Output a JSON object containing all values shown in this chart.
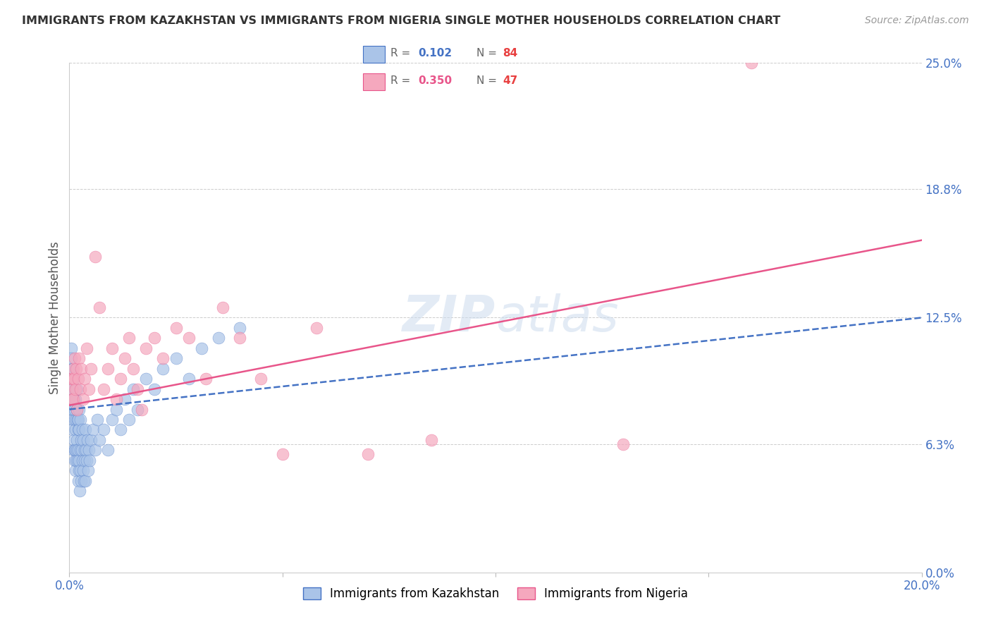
{
  "title": "IMMIGRANTS FROM KAZAKHSTAN VS IMMIGRANTS FROM NIGERIA SINGLE MOTHER HOUSEHOLDS CORRELATION CHART",
  "source": "Source: ZipAtlas.com",
  "ylabel": "Single Mother Households",
  "xlabel_ticks": [
    "0.0%",
    "",
    "",
    "",
    "20.0%"
  ],
  "xlabel_vals": [
    0.0,
    0.05,
    0.1,
    0.15,
    0.2
  ],
  "ylabel_ticks_right": [
    "25.0%",
    "18.8%",
    "12.5%",
    "6.3%",
    "0.0%"
  ],
  "ylabel_vals": [
    0.0,
    0.063,
    0.125,
    0.188,
    0.25
  ],
  "xlim": [
    0.0,
    0.2
  ],
  "ylim": [
    0.0,
    0.25
  ],
  "kazakhstan_color": "#aac4e8",
  "nigeria_color": "#f5a8be",
  "kazakhstan_R": "0.102",
  "kazakhstan_N": "84",
  "nigeria_R": "0.350",
  "nigeria_N": "47",
  "kazakhstan_trend_color": "#4472c4",
  "nigeria_trend_color": "#e8558a",
  "kaz_trend_start_y": 0.08,
  "kaz_trend_end_y": 0.125,
  "nig_trend_start_y": 0.082,
  "nig_trend_end_y": 0.163,
  "kazakhstan_x": [
    0.0005,
    0.0005,
    0.0005,
    0.0006,
    0.0006,
    0.0007,
    0.0007,
    0.0007,
    0.0008,
    0.0008,
    0.0009,
    0.001,
    0.001,
    0.001,
    0.0011,
    0.0011,
    0.0012,
    0.0012,
    0.0013,
    0.0013,
    0.0014,
    0.0014,
    0.0015,
    0.0015,
    0.0016,
    0.0016,
    0.0017,
    0.0017,
    0.0018,
    0.0018,
    0.0019,
    0.0019,
    0.002,
    0.002,
    0.0021,
    0.0021,
    0.0022,
    0.0022,
    0.0023,
    0.0023,
    0.0024,
    0.0025,
    0.0025,
    0.0026,
    0.0027,
    0.0028,
    0.0029,
    0.003,
    0.0031,
    0.0032,
    0.0033,
    0.0034,
    0.0035,
    0.0036,
    0.0037,
    0.0038,
    0.0039,
    0.004,
    0.0042,
    0.0044,
    0.0046,
    0.0048,
    0.005,
    0.0055,
    0.006,
    0.0065,
    0.007,
    0.008,
    0.009,
    0.01,
    0.011,
    0.012,
    0.013,
    0.014,
    0.015,
    0.016,
    0.018,
    0.02,
    0.022,
    0.025,
    0.028,
    0.031,
    0.035,
    0.04
  ],
  "kazakhstan_y": [
    0.1,
    0.11,
    0.105,
    0.09,
    0.095,
    0.08,
    0.085,
    0.1,
    0.07,
    0.09,
    0.075,
    0.06,
    0.08,
    0.095,
    0.065,
    0.085,
    0.055,
    0.075,
    0.06,
    0.08,
    0.05,
    0.07,
    0.06,
    0.085,
    0.055,
    0.075,
    0.065,
    0.09,
    0.06,
    0.08,
    0.055,
    0.075,
    0.045,
    0.07,
    0.06,
    0.075,
    0.05,
    0.08,
    0.055,
    0.07,
    0.04,
    0.06,
    0.075,
    0.05,
    0.065,
    0.045,
    0.06,
    0.055,
    0.07,
    0.05,
    0.065,
    0.045,
    0.06,
    0.055,
    0.07,
    0.045,
    0.06,
    0.055,
    0.065,
    0.05,
    0.06,
    0.055,
    0.065,
    0.07,
    0.06,
    0.075,
    0.065,
    0.07,
    0.06,
    0.075,
    0.08,
    0.07,
    0.085,
    0.075,
    0.09,
    0.08,
    0.095,
    0.09,
    0.1,
    0.105,
    0.095,
    0.11,
    0.115,
    0.12
  ],
  "nigeria_x": [
    0.0005,
    0.0006,
    0.0007,
    0.0008,
    0.0009,
    0.001,
    0.0011,
    0.0012,
    0.0014,
    0.0016,
    0.0018,
    0.002,
    0.0022,
    0.0025,
    0.0028,
    0.0032,
    0.0036,
    0.004,
    0.0045,
    0.005,
    0.006,
    0.007,
    0.008,
    0.009,
    0.01,
    0.011,
    0.012,
    0.013,
    0.014,
    0.015,
    0.016,
    0.017,
    0.018,
    0.02,
    0.022,
    0.025,
    0.028,
    0.032,
    0.036,
    0.04,
    0.045,
    0.05,
    0.058,
    0.07,
    0.085,
    0.13,
    0.16
  ],
  "nigeria_y": [
    0.095,
    0.09,
    0.085,
    0.095,
    0.1,
    0.085,
    0.095,
    0.105,
    0.09,
    0.1,
    0.08,
    0.095,
    0.105,
    0.09,
    0.1,
    0.085,
    0.095,
    0.11,
    0.09,
    0.1,
    0.155,
    0.13,
    0.09,
    0.1,
    0.11,
    0.085,
    0.095,
    0.105,
    0.115,
    0.1,
    0.09,
    0.08,
    0.11,
    0.115,
    0.105,
    0.12,
    0.115,
    0.095,
    0.13,
    0.115,
    0.095,
    0.058,
    0.12,
    0.058,
    0.065,
    0.063,
    0.25
  ]
}
